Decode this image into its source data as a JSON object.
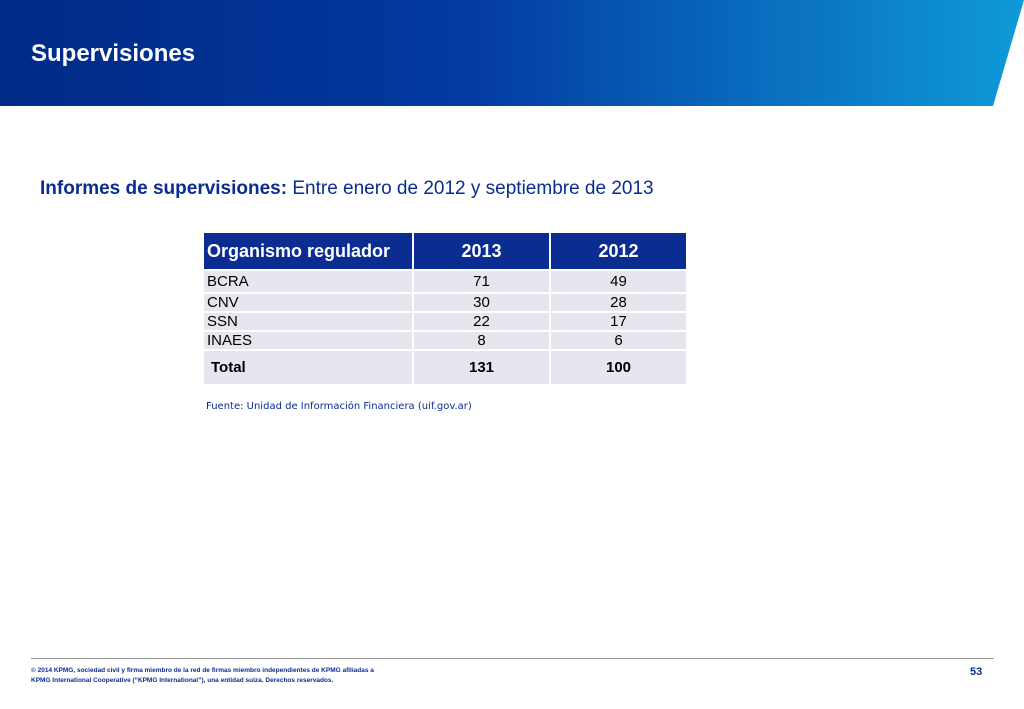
{
  "header": {
    "title": "Supervisiones",
    "colors": {
      "dark": "#002a86",
      "light": "#0f9ad8"
    }
  },
  "subtitle": {
    "label": "Informes de supervisiones:",
    "text": " Entre enero de 2012 y septiembre de 2013"
  },
  "table": {
    "headers": [
      "Organismo regulador",
      "2013",
      "2012"
    ],
    "rows": [
      [
        "BCRA",
        "71",
        "49"
      ],
      [
        "CNV",
        "30",
        "28"
      ],
      [
        "SSN",
        "22",
        "17"
      ],
      [
        "INAES",
        "8",
        "6"
      ]
    ],
    "total": [
      "Total",
      "131",
      "100"
    ]
  },
  "source": "Fuente: Unidad de Información Financiera (uif.gov.ar)",
  "footer": {
    "copyright_line1": "© 2014 KPMG, sociedad civil y firma miembro de la red de firmas miembro independientes de KPMG afiliadas a",
    "copyright_line2": "KPMG International Cooperative (“KPMG International”), una entidad suiza. Derechos reservados.",
    "page": "53"
  }
}
